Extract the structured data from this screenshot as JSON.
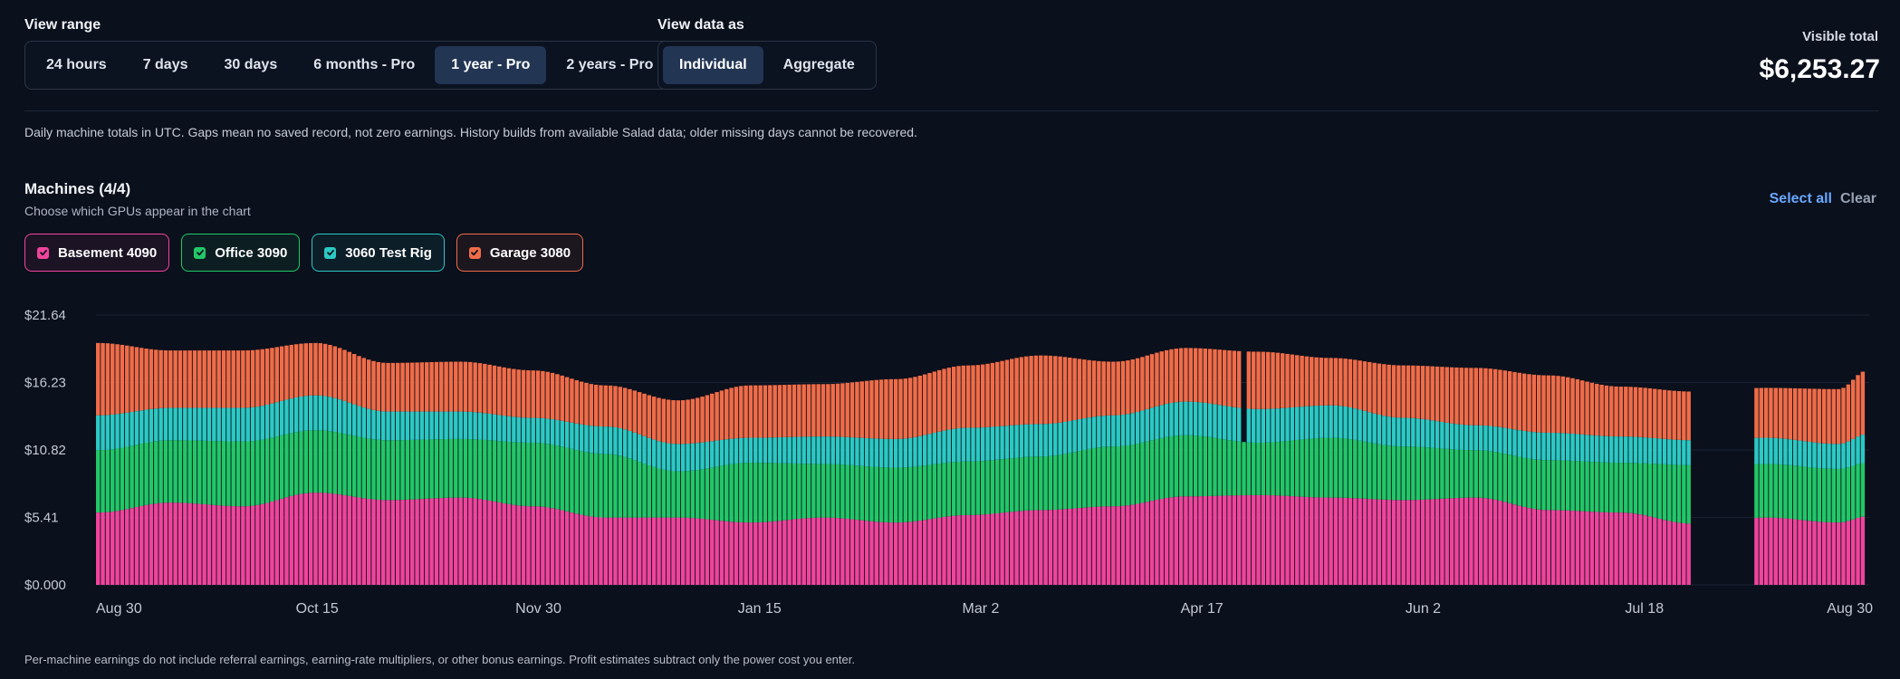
{
  "view_range": {
    "label": "View range",
    "options": [
      "24 hours",
      "7 days",
      "30 days",
      "6 months - Pro",
      "1 year - Pro",
      "2 years - Pro"
    ],
    "selected": "1 year - Pro"
  },
  "view_data_as": {
    "label": "View data as",
    "options": [
      "Individual",
      "Aggregate"
    ],
    "selected": "Individual"
  },
  "visible_total": {
    "label": "Visible total",
    "value": "$6,253.27"
  },
  "notes": {
    "info": "Daily machine totals in UTC. Gaps mean no saved record, not zero earnings. History builds from available Salad data; older missing days cannot be recovered.",
    "footer": "Per-machine earnings do not include referral earnings, earning-rate multipliers, or other bonus earnings. Profit estimates subtract only the power cost you enter."
  },
  "machines": {
    "title": "Machines (4/4)",
    "subtitle": "Choose which GPUs appear in the chart",
    "select_all": "Select all",
    "clear": "Clear",
    "list": [
      {
        "name": "Basement 4090",
        "color": "#f0449c",
        "checked": true
      },
      {
        "name": "Office 3090",
        "color": "#22c768",
        "checked": true
      },
      {
        "name": "3060 Test Rig",
        "color": "#2cc9c4",
        "checked": true
      },
      {
        "name": "Garage 3080",
        "color": "#f06c48",
        "checked": true
      }
    ]
  },
  "colors": {
    "accent_link": "#6aa8ff",
    "active_segment": "#223553"
  },
  "chart_data": {
    "type": "bar",
    "stacked": true,
    "ylim": [
      0,
      21.64
    ],
    "y_ticks": [
      "$0.000",
      "$5.41",
      "$10.82",
      "$16.23",
      "$21.64"
    ],
    "x_ticks": [
      "Aug 30",
      "Oct 15",
      "Nov 30",
      "Jan 15",
      "Mar 2",
      "Apr 17",
      "Jun 2",
      "Jul 18",
      "Aug 30"
    ],
    "series_order": [
      "Basement 4090",
      "Office 3090",
      "3060 Test Rig",
      "Garage 3080"
    ],
    "anchors_x_days": [
      0,
      15,
      30,
      45,
      60,
      75,
      90,
      105,
      120,
      135,
      150,
      165,
      180,
      195,
      210,
      225,
      240,
      255,
      270,
      285,
      300,
      315,
      330,
      345,
      360,
      366
    ],
    "series": [
      {
        "name": "Basement 4090",
        "anchors": [
          5.8,
          6.6,
          6.3,
          7.4,
          6.8,
          7.0,
          6.3,
          5.4,
          5.4,
          5.0,
          5.4,
          5.0,
          5.6,
          6.0,
          6.3,
          7.1,
          7.2,
          7.0,
          6.8,
          7.0,
          6.0,
          5.8,
          4.9,
          5.4,
          5.0,
          5.5
        ]
      },
      {
        "name": "Office 3090",
        "anchors": [
          5.0,
          5.0,
          5.2,
          5.0,
          4.8,
          4.7,
          5.1,
          5.1,
          3.7,
          4.8,
          4.3,
          4.4,
          4.3,
          4.3,
          4.8,
          4.9,
          4.2,
          4.8,
          4.3,
          3.8,
          4.0,
          4.0,
          4.7,
          4.3,
          4.3,
          4.3
        ]
      },
      {
        "name": "3060 Test Rig",
        "anchors": [
          2.8,
          2.6,
          2.7,
          2.8,
          2.3,
          2.2,
          2.0,
          2.2,
          2.2,
          2.0,
          2.2,
          2.3,
          2.7,
          2.6,
          2.5,
          2.7,
          2.7,
          2.6,
          2.3,
          2.0,
          2.2,
          2.1,
          2.0,
          2.1,
          2.0,
          2.3
        ]
      },
      {
        "name": "Garage 3080",
        "anchors": [
          5.8,
          4.6,
          4.6,
          4.2,
          3.9,
          4.0,
          3.8,
          3.3,
          3.5,
          4.2,
          4.2,
          4.8,
          5.0,
          5.5,
          4.3,
          4.3,
          4.6,
          3.8,
          4.2,
          4.6,
          4.6,
          4.0,
          3.9,
          4.0,
          4.4,
          5.1
        ]
      }
    ],
    "gaps_days": [
      330,
      331,
      332,
      333,
      334,
      335,
      336,
      337,
      338,
      339,
      340,
      341,
      342
    ],
    "partial_days": [
      {
        "day": 237,
        "series_included": [
          "Basement 4090",
          "Office 3090"
        ]
      }
    ]
  }
}
